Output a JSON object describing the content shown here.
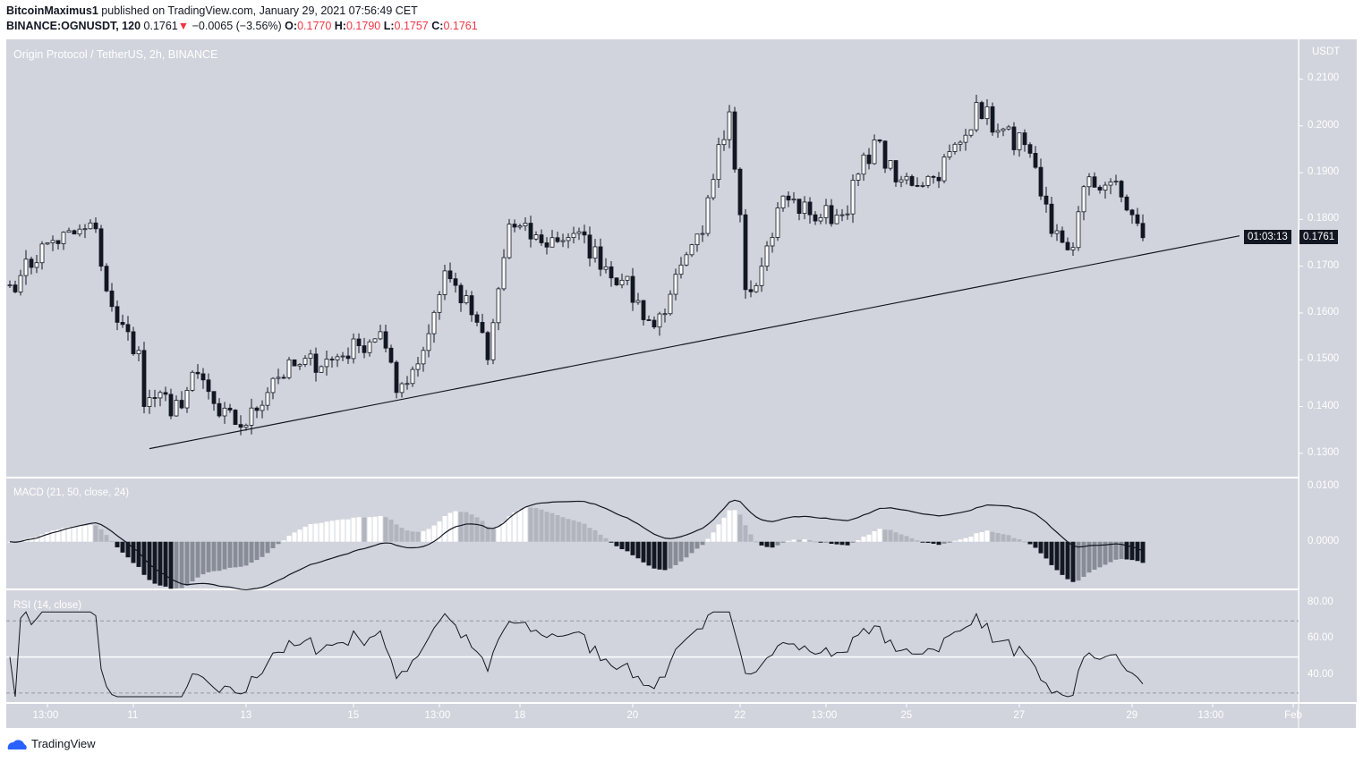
{
  "header": {
    "author": "BitcoinMaximus1",
    "published": "published on TradingView.com, January 29, 2021 07:56:49 CET",
    "symbol": "BINANCE:OGNUSDT, 120",
    "last": "0.1761",
    "arrow": "▼",
    "change": "−0.0065 (−3.56%)",
    "o_label": "O:",
    "o": "0.1770",
    "h_label": "H:",
    "h": "0.1790",
    "l_label": "L:",
    "l": "0.1757",
    "c_label": "C:",
    "c": "0.1761"
  },
  "footer": {
    "brand": "TradingView"
  },
  "colors": {
    "bg": "#d1d4dc",
    "candle": "#131722",
    "up_fill": "#ffffff",
    "hist_dark": "#131722",
    "hist_light": "#ffffff",
    "hist_mid": "#888c96"
  },
  "chart_data": [
    {
      "type": "candlestick",
      "title": "Origin Protocol / TetherUS, 2h, BINANCE",
      "currency": "USDT",
      "ylim": [
        0.125,
        0.2185
      ],
      "yticks": [
        "0.2100",
        "0.2000",
        "0.1900",
        "0.1800",
        "0.1700",
        "0.1600",
        "0.1500",
        "0.1400",
        "0.1300"
      ],
      "ytick_values": [
        0.21,
        0.2,
        0.19,
        0.18,
        0.17,
        0.16,
        0.15,
        0.14,
        0.13
      ],
      "xticks": [
        "13:00",
        "11",
        "13",
        "15",
        "13:00",
        "18",
        "20",
        "22",
        "13:00",
        "25",
        "27",
        "29",
        "13:00",
        "Feb"
      ],
      "xtick_index": [
        7,
        23,
        44,
        64,
        80,
        95,
        116,
        136,
        152,
        167,
        188,
        209,
        224,
        239
      ],
      "candle_count": 212,
      "key_closes": [
        [
          0,
          0.166
        ],
        [
          2,
          0.168
        ],
        [
          7,
          0.175
        ],
        [
          16,
          0.178
        ],
        [
          17,
          0.17
        ],
        [
          20,
          0.158
        ],
        [
          24,
          0.152
        ],
        [
          25,
          0.14
        ],
        [
          28,
          0.143
        ],
        [
          30,
          0.138
        ],
        [
          35,
          0.147
        ],
        [
          39,
          0.138
        ],
        [
          44,
          0.136
        ],
        [
          49,
          0.146
        ],
        [
          54,
          0.149
        ],
        [
          60,
          0.15
        ],
        [
          65,
          0.153
        ],
        [
          69,
          0.156
        ],
        [
          72,
          0.143
        ],
        [
          77,
          0.152
        ],
        [
          81,
          0.169
        ],
        [
          87,
          0.158
        ],
        [
          89,
          0.15
        ],
        [
          93,
          0.179
        ],
        [
          99,
          0.175
        ],
        [
          105,
          0.177
        ],
        [
          114,
          0.167
        ],
        [
          120,
          0.157
        ],
        [
          123,
          0.164
        ],
        [
          129,
          0.177
        ],
        [
          132,
          0.196
        ],
        [
          134,
          0.203
        ],
        [
          136,
          0.181
        ],
        [
          137,
          0.165
        ],
        [
          140,
          0.17
        ],
        [
          144,
          0.185
        ],
        [
          149,
          0.181
        ],
        [
          155,
          0.181
        ],
        [
          161,
          0.197
        ],
        [
          165,
          0.188
        ],
        [
          172,
          0.189
        ],
        [
          178,
          0.198
        ],
        [
          180,
          0.205
        ],
        [
          184,
          0.199
        ],
        [
          189,
          0.196
        ],
        [
          192,
          0.185
        ],
        [
          194,
          0.177
        ],
        [
          198,
          0.174
        ],
        [
          200,
          0.187
        ],
        [
          205,
          0.188
        ],
        [
          209,
          0.181
        ],
        [
          211,
          0.1761
        ]
      ],
      "last_price": "0.1761",
      "countdown": "01:03:13",
      "trendline": {
        "from": [
          26,
          0.131
        ],
        "to": [
          229,
          0.1765
        ]
      }
    },
    {
      "type": "macd",
      "title": "MACD (21, 50, close, 24)",
      "fast": 21,
      "slow": 50,
      "signal": 24,
      "yticks": [
        "0.0100",
        "0.0000"
      ],
      "ytick_values": [
        0.01,
        0
      ],
      "ylim": [
        -0.0085,
        0.0115
      ]
    },
    {
      "type": "rsi",
      "title": "RSI (14, close)",
      "period": 14,
      "yticks": [
        "80.00",
        "60.00",
        "40.00"
      ],
      "ytick_values": [
        80,
        60,
        40
      ],
      "bands": [
        70,
        30
      ],
      "mid": 50,
      "ylim": [
        25,
        87
      ]
    }
  ]
}
